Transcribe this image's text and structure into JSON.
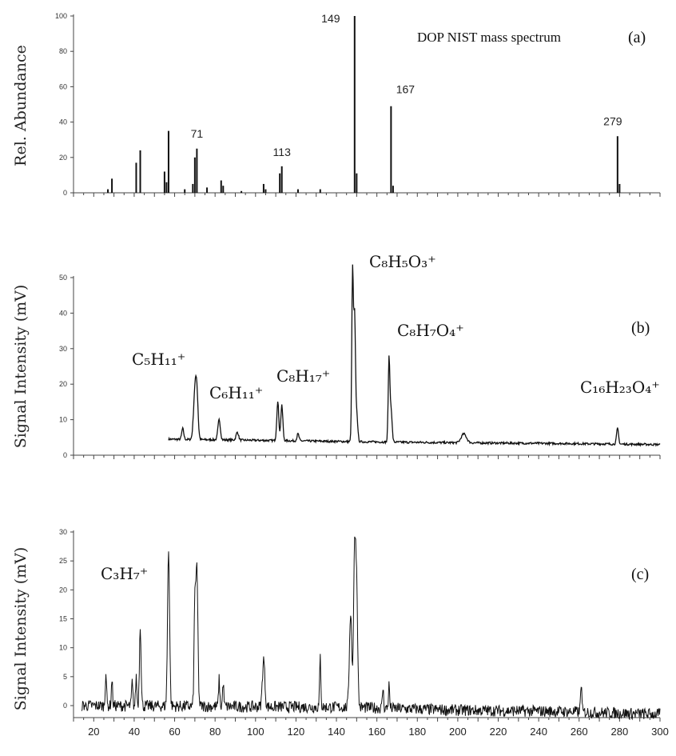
{
  "chart_data": [
    {
      "type": "bar",
      "panel": "(a)",
      "title": "DOP NIST mass spectrum",
      "ylabel": "Rel. Abundance",
      "ylim": [
        0,
        100
      ],
      "yticks": [
        0,
        20,
        40,
        60,
        80,
        100
      ],
      "xlim": [
        10,
        300
      ],
      "peaks": [
        {
          "x": 27,
          "y": 2
        },
        {
          "x": 29,
          "y": 8
        },
        {
          "x": 41,
          "y": 17
        },
        {
          "x": 43,
          "y": 24
        },
        {
          "x": 55,
          "y": 12
        },
        {
          "x": 56,
          "y": 6
        },
        {
          "x": 57,
          "y": 35
        },
        {
          "x": 65,
          "y": 2
        },
        {
          "x": 69,
          "y": 5
        },
        {
          "x": 70,
          "y": 20
        },
        {
          "x": 71,
          "y": 25
        },
        {
          "x": 76,
          "y": 3
        },
        {
          "x": 83,
          "y": 7
        },
        {
          "x": 84,
          "y": 4
        },
        {
          "x": 93,
          "y": 1
        },
        {
          "x": 104,
          "y": 5
        },
        {
          "x": 105,
          "y": 2
        },
        {
          "x": 112,
          "y": 11
        },
        {
          "x": 113,
          "y": 15
        },
        {
          "x": 121,
          "y": 2
        },
        {
          "x": 132,
          "y": 2
        },
        {
          "x": 149,
          "y": 100
        },
        {
          "x": 150,
          "y": 11
        },
        {
          "x": 167,
          "y": 49
        },
        {
          "x": 168,
          "y": 4
        },
        {
          "x": 279,
          "y": 32
        },
        {
          "x": 280,
          "y": 5
        }
      ],
      "annotations": [
        {
          "text": "71",
          "x": 71
        },
        {
          "text": "113",
          "x": 113
        },
        {
          "text": "149",
          "x": 149
        },
        {
          "text": "167",
          "x": 167
        },
        {
          "text": "279",
          "x": 279
        }
      ]
    },
    {
      "type": "line",
      "panel": "(b)",
      "ylabel": "Signal Intensity (mV)",
      "ylim": [
        0,
        52
      ],
      "yticks": [
        0,
        10,
        20,
        30,
        40,
        50
      ],
      "xlim": [
        10,
        300
      ],
      "baseline": [
        [
          57,
          4.5
        ],
        [
          100,
          4.2
        ],
        [
          150,
          3.8
        ],
        [
          200,
          3.5
        ],
        [
          250,
          3.3
        ],
        [
          300,
          3.0
        ]
      ],
      "peaks": [
        {
          "x": 64,
          "y": 7.5,
          "w": 0.5
        },
        {
          "x": 70,
          "y": 17,
          "w": 0.7
        },
        {
          "x": 71,
          "y": 16,
          "w": 0.6
        },
        {
          "x": 82,
          "y": 10,
          "w": 0.6
        },
        {
          "x": 91,
          "y": 6.5,
          "w": 0.6
        },
        {
          "x": 111,
          "y": 15,
          "w": 0.5
        },
        {
          "x": 113,
          "y": 14,
          "w": 0.5
        },
        {
          "x": 121,
          "y": 6,
          "w": 0.5
        },
        {
          "x": 148,
          "y": 52,
          "w": 0.4
        },
        {
          "x": 149,
          "y": 38,
          "w": 0.4
        },
        {
          "x": 150,
          "y": 12,
          "w": 0.5
        },
        {
          "x": 166,
          "y": 26.5,
          "w": 0.4
        },
        {
          "x": 167,
          "y": 13,
          "w": 0.5
        },
        {
          "x": 203,
          "y": 6,
          "w": 1.3
        },
        {
          "x": 279,
          "y": 7.5,
          "w": 0.5
        }
      ],
      "annotations": [
        {
          "text": "C₅H₁₁⁺",
          "x": 71
        },
        {
          "text": "C₆H₁₁⁺",
          "x": 82
        },
        {
          "text": "C₈H₁₇⁺",
          "x": 113
        },
        {
          "text": "C₈H₅O₃⁺",
          "x": 149
        },
        {
          "text": "C₈H₇O₄⁺",
          "x": 167
        },
        {
          "text": "C₁₆H₂₃O₄⁺",
          "x": 279
        }
      ]
    },
    {
      "type": "line",
      "panel": "(c)",
      "ylabel": "Signal Intensity (mV)",
      "ylim": [
        -3,
        30
      ],
      "yticks": [
        0,
        5,
        10,
        15,
        20,
        25,
        30
      ],
      "xlim": [
        10,
        300
      ],
      "xticks": [
        20,
        40,
        60,
        80,
        100,
        120,
        140,
        160,
        180,
        200,
        220,
        240,
        260,
        280,
        300
      ],
      "baseline": [
        [
          14,
          0
        ],
        [
          150,
          -0.3
        ],
        [
          200,
          -0.8
        ],
        [
          250,
          -1.0
        ],
        [
          300,
          -1.5
        ]
      ],
      "peaks": [
        {
          "x": 26,
          "y": 6,
          "w": 0.3
        },
        {
          "x": 29,
          "y": 4.5,
          "w": 0.3
        },
        {
          "x": 39,
          "y": 4,
          "w": 0.3
        },
        {
          "x": 41,
          "y": 5,
          "w": 0.3
        },
        {
          "x": 43,
          "y": 14,
          "w": 0.4
        },
        {
          "x": 57,
          "y": 27,
          "w": 0.5
        },
        {
          "x": 70,
          "y": 17,
          "w": 0.4
        },
        {
          "x": 71,
          "y": 23,
          "w": 0.5
        },
        {
          "x": 82,
          "y": 4.5,
          "w": 0.3
        },
        {
          "x": 84,
          "y": 4,
          "w": 0.3
        },
        {
          "x": 104,
          "y": 8,
          "w": 0.6
        },
        {
          "x": 132,
          "y": 8.5,
          "w": 0.3
        },
        {
          "x": 147,
          "y": 16,
          "w": 0.6
        },
        {
          "x": 149,
          "y": 26.5,
          "w": 0.5
        },
        {
          "x": 150,
          "y": 20,
          "w": 0.5
        },
        {
          "x": 163,
          "y": 3,
          "w": 0.3
        },
        {
          "x": 166,
          "y": 3.5,
          "w": 0.3
        },
        {
          "x": 261,
          "y": 4,
          "w": 0.3
        }
      ],
      "annotations": [
        {
          "text": "C₃H₇⁺",
          "x": 43
        }
      ]
    }
  ]
}
